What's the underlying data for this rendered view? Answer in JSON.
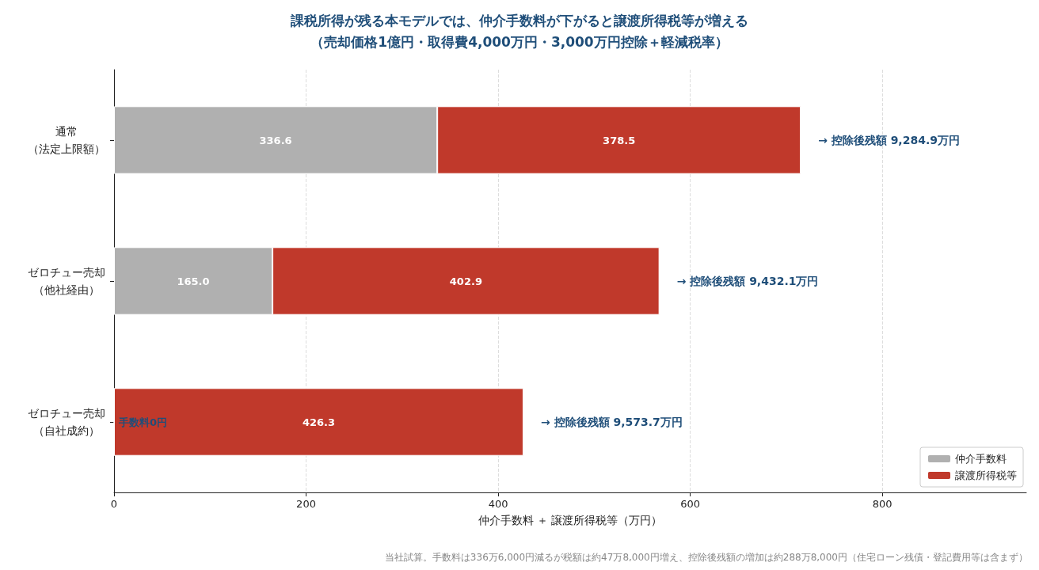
{
  "chart_data": {
    "type": "bar",
    "orientation": "horizontal",
    "stacked": true,
    "title": "課税所得が残る本モデルでは、仲介手数料が下がると譲渡所得税等が増える",
    "subtitle": "（売却価格1億円・取得費4,000万円・3,000万円控除＋軽減税率）",
    "xlabel": "仲介手数料 ＋ 譲渡所得税等（万円）",
    "categories": [
      "通常（法定上限額）",
      "ゼロチュー売却（他社経由）",
      "ゼロチュー売却（自社成約）"
    ],
    "series": [
      {
        "name": "仲介手数料",
        "color": "#b0b0b0",
        "values": [
          336.6,
          165.0,
          0
        ],
        "value_labels": [
          "336.6",
          "165.0",
          null
        ]
      },
      {
        "name": "譲渡所得税等",
        "color": "#c0392b",
        "values": [
          378.5,
          402.9,
          426.3
        ],
        "value_labels": [
          "378.5",
          "402.9",
          "426.3"
        ]
      }
    ],
    "xlim": [
      0,
      950
    ],
    "xticks": [
      0,
      200,
      400,
      600,
      800
    ],
    "grid": "x",
    "legend": "bottom right",
    "annotations": [
      {
        "text": "手数料0円",
        "x": 0,
        "y": "ゼロチュー売却（自社成約）"
      },
      {
        "text": "→ 控除後残額 9,284.9万円",
        "x": 715.1,
        "y": "通常（法定上限額）"
      },
      {
        "text": "→ 控除後残額 9,432.1万円",
        "x": 567.9,
        "y": "ゼロチュー売却（他社経由）"
      },
      {
        "text": "→ 控除後残額 9,573.7万円",
        "x": 426.3,
        "y": "ゼロチュー売却（自社成約）"
      },
      "当社試算。手数料は336万6,000円減るが税額は約47万8,000円増え、控除後残額の増加は約288万8,000円（住宅ローン残債・登記費用等は含まず）"
    ]
  }
}
